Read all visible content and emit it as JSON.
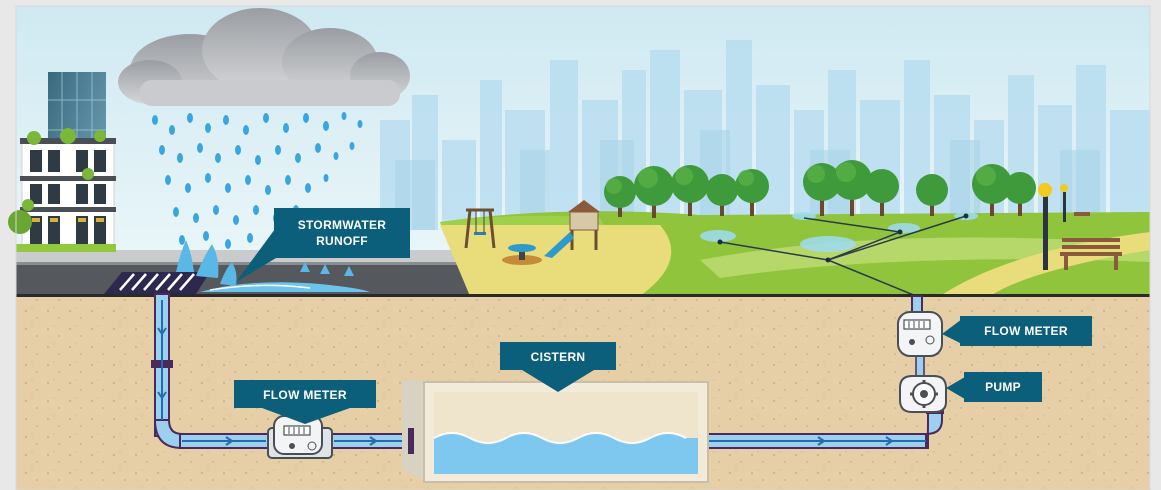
{
  "labels": {
    "stormwater_line1": "STORMWATER",
    "stormwater_line2": "RUNOFF",
    "cistern": "CISTERN",
    "flow_meter_left": "FLOW METER",
    "flow_meter_right": "FLOW METER",
    "pump": "PUMP"
  },
  "colors": {
    "label_bg": "#0c5f7a",
    "pipe_fill": "#9ccff0",
    "pipe_outline": "#4a2a5a",
    "water": "#7ec8ef",
    "soil": "#e6cfa6",
    "grass": "#92c83e",
    "sky": "#dff1f6"
  },
  "icons": {
    "cloud": "rain-cloud-icon",
    "meter": "flow-meter-icon",
    "pump": "pump-gear-icon"
  }
}
